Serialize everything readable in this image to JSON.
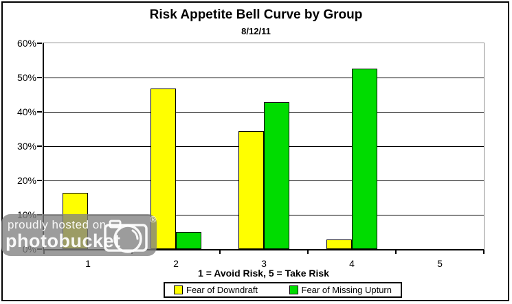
{
  "chart": {
    "title": "Risk Appetite Bell Curve by Group",
    "subtitle": "8/12/11",
    "x_axis_title": "1 = Avoid Risk, 5 = Take Risk"
  },
  "chart_data": {
    "type": "bar",
    "title": "Risk Appetite Bell Curve by Group",
    "subtitle": "8/12/11",
    "categories": [
      "1",
      "2",
      "3",
      "4",
      "5"
    ],
    "series": [
      {
        "name": "Fear of Downdraft",
        "color": "#FFFF00",
        "values": [
          16.5,
          46.8,
          34.4,
          2.8,
          0
        ]
      },
      {
        "name": "Fear of Missing Upturn",
        "color": "#00DC00",
        "values": [
          0,
          5,
          42.8,
          52.6,
          0
        ]
      }
    ],
    "xlabel": "1 = Avoid Risk, 5 = Take Risk",
    "ylabel": "",
    "ylim": [
      0,
      60
    ],
    "ytick_step": 10,
    "ytick_labels": [
      "0%",
      "10%",
      "20%",
      "30%",
      "40%",
      "50%",
      "60%"
    ],
    "grid": true,
    "legend_position": "bottom",
    "gridline_color": "#000000",
    "plot_border_color": "#909090"
  },
  "watermark": {
    "line1": "proudly hosted on",
    "line2": "photobucket",
    "registered": "®"
  }
}
